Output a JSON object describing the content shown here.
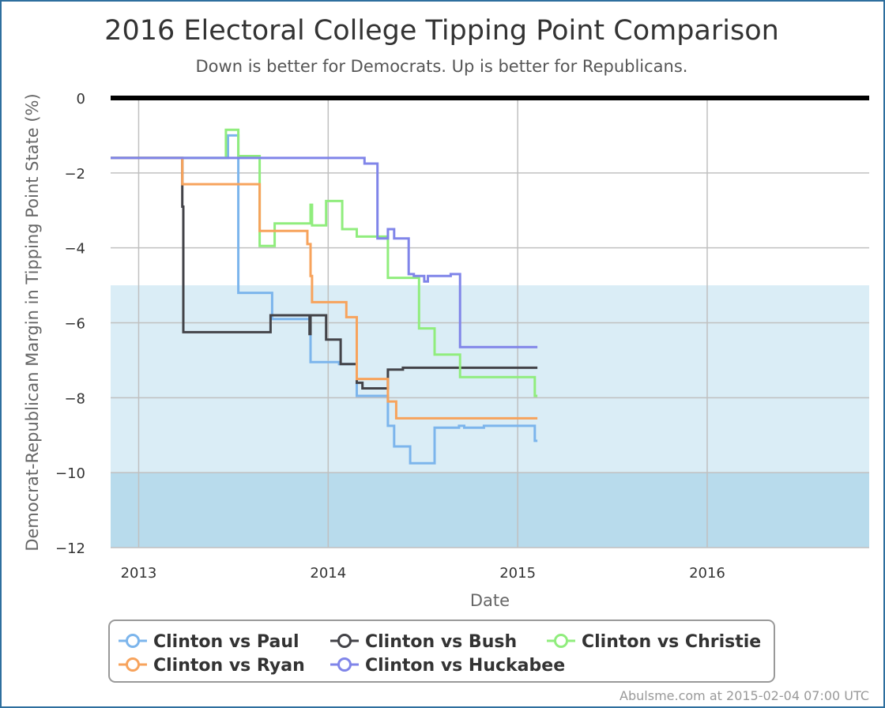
{
  "chart_data": {
    "type": "line",
    "title": "2016 Electoral College Tipping Point Comparison",
    "subtitle": "Down is better for Democrats. Up is better for Republicans.",
    "xlabel": "Date",
    "ylabel": "Democrat-Republican Margin in Tipping Point State (%)",
    "xlim": [
      "2012-11-08",
      "2016-11-08"
    ],
    "ylim": [
      -12,
      0
    ],
    "x_ticks": [
      {
        "date": "2013-01-01",
        "label": "2013"
      },
      {
        "date": "2014-01-01",
        "label": "2014"
      },
      {
        "date": "2015-01-01",
        "label": "2015"
      },
      {
        "date": "2016-01-01",
        "label": "2016"
      }
    ],
    "y_ticks": [
      0,
      -2,
      -4,
      -6,
      -8,
      -10,
      -12
    ],
    "bands": [
      {
        "from": -12,
        "to": -10,
        "color": "#b8dbec"
      },
      {
        "from": -10,
        "to": -5,
        "color": "#daedf6"
      }
    ],
    "zero_line_color": "#000000",
    "grid": true,
    "legend_position": "bottom",
    "series": [
      {
        "name": "Clinton vs Paul",
        "color": "#7cb5ec",
        "points": [
          [
            "2012-11-08",
            -1.6
          ],
          [
            "2013-06-22",
            -1.6
          ],
          [
            "2013-06-22",
            -1.0
          ],
          [
            "2013-07-12",
            -1.0
          ],
          [
            "2013-07-12",
            -5.2
          ],
          [
            "2013-09-15",
            -5.2
          ],
          [
            "2013-09-15",
            -5.9
          ],
          [
            "2013-11-28",
            -5.9
          ],
          [
            "2013-11-28",
            -7.05
          ],
          [
            "2014-01-22",
            -7.05
          ],
          [
            "2014-01-22",
            -7.1
          ],
          [
            "2014-02-25",
            -7.1
          ],
          [
            "2014-02-25",
            -7.95
          ],
          [
            "2014-04-26",
            -7.95
          ],
          [
            "2014-04-26",
            -8.75
          ],
          [
            "2014-05-08",
            -8.75
          ],
          [
            "2014-05-08",
            -9.3
          ],
          [
            "2014-06-08",
            -9.3
          ],
          [
            "2014-06-08",
            -9.75
          ],
          [
            "2014-07-25",
            -9.75
          ],
          [
            "2014-07-25",
            -8.8
          ],
          [
            "2014-09-10",
            -8.8
          ],
          [
            "2014-09-10",
            -8.75
          ],
          [
            "2014-09-20",
            -8.75
          ],
          [
            "2014-09-20",
            -8.8
          ],
          [
            "2014-10-28",
            -8.8
          ],
          [
            "2014-10-28",
            -8.75
          ],
          [
            "2015-02-03",
            -8.75
          ],
          [
            "2015-02-03",
            -9.15
          ],
          [
            "2015-02-08",
            -9.15
          ]
        ]
      },
      {
        "name": "Clinton vs Bush",
        "color": "#434348",
        "points": [
          [
            "2012-11-08",
            -1.6
          ],
          [
            "2013-03-26",
            -1.6
          ],
          [
            "2013-03-26",
            -2.9
          ],
          [
            "2013-03-28",
            -2.9
          ],
          [
            "2013-03-28",
            -6.25
          ],
          [
            "2013-09-12",
            -6.25
          ],
          [
            "2013-09-12",
            -5.8
          ],
          [
            "2013-11-26",
            -5.8
          ],
          [
            "2013-11-26",
            -6.3
          ],
          [
            "2013-11-28",
            -6.3
          ],
          [
            "2013-11-28",
            -5.8
          ],
          [
            "2013-12-28",
            -5.8
          ],
          [
            "2013-12-28",
            -6.45
          ],
          [
            "2014-01-25",
            -6.45
          ],
          [
            "2014-01-25",
            -7.1
          ],
          [
            "2014-02-25",
            -7.1
          ],
          [
            "2014-02-25",
            -7.6
          ],
          [
            "2014-03-08",
            -7.6
          ],
          [
            "2014-03-08",
            -7.75
          ],
          [
            "2014-04-26",
            -7.75
          ],
          [
            "2014-04-26",
            -7.25
          ],
          [
            "2014-05-25",
            -7.25
          ],
          [
            "2014-05-25",
            -7.2
          ],
          [
            "2015-02-08",
            -7.2
          ]
        ]
      },
      {
        "name": "Clinton vs Christie",
        "color": "#90ed7d",
        "points": [
          [
            "2012-11-08",
            -1.6
          ],
          [
            "2013-06-18",
            -1.6
          ],
          [
            "2013-06-18",
            -0.85
          ],
          [
            "2013-07-12",
            -0.85
          ],
          [
            "2013-07-12",
            -1.55
          ],
          [
            "2013-08-22",
            -1.55
          ],
          [
            "2013-08-22",
            -3.95
          ],
          [
            "2013-09-20",
            -3.95
          ],
          [
            "2013-09-20",
            -3.35
          ],
          [
            "2013-11-28",
            -3.35
          ],
          [
            "2013-11-28",
            -2.85
          ],
          [
            "2013-12-01",
            -2.85
          ],
          [
            "2013-12-01",
            -3.4
          ],
          [
            "2013-12-28",
            -3.4
          ],
          [
            "2013-12-28",
            -2.75
          ],
          [
            "2014-01-28",
            -2.75
          ],
          [
            "2014-01-28",
            -3.5
          ],
          [
            "2014-02-25",
            -3.5
          ],
          [
            "2014-02-25",
            -3.7
          ],
          [
            "2014-04-26",
            -3.7
          ],
          [
            "2014-04-26",
            -4.8
          ],
          [
            "2014-06-25",
            -4.8
          ],
          [
            "2014-06-25",
            -6.15
          ],
          [
            "2014-07-25",
            -6.15
          ],
          [
            "2014-07-25",
            -6.85
          ],
          [
            "2014-09-12",
            -6.85
          ],
          [
            "2014-09-12",
            -7.45
          ],
          [
            "2015-02-03",
            -7.45
          ],
          [
            "2015-02-03",
            -7.95
          ],
          [
            "2015-02-08",
            -7.95
          ]
        ]
      },
      {
        "name": "Clinton vs Ryan",
        "color": "#f7a35c",
        "points": [
          [
            "2012-11-08",
            -1.6
          ],
          [
            "2013-03-26",
            -1.6
          ],
          [
            "2013-03-26",
            -2.3
          ],
          [
            "2013-08-22",
            -2.3
          ],
          [
            "2013-08-22",
            -3.55
          ],
          [
            "2013-11-22",
            -3.55
          ],
          [
            "2013-11-22",
            -3.9
          ],
          [
            "2013-11-28",
            -3.9
          ],
          [
            "2013-11-28",
            -4.75
          ],
          [
            "2013-12-01",
            -4.75
          ],
          [
            "2013-12-01",
            -5.45
          ],
          [
            "2014-02-05",
            -5.45
          ],
          [
            "2014-02-05",
            -5.85
          ],
          [
            "2014-02-25",
            -5.85
          ],
          [
            "2014-02-25",
            -7.5
          ],
          [
            "2014-04-26",
            -7.5
          ],
          [
            "2014-04-26",
            -8.1
          ],
          [
            "2014-05-12",
            -8.1
          ],
          [
            "2014-05-12",
            -8.55
          ],
          [
            "2015-02-08",
            -8.55
          ]
        ]
      },
      {
        "name": "Clinton vs Huckabee",
        "color": "#8085e9",
        "points": [
          [
            "2012-11-08",
            -1.6
          ],
          [
            "2014-03-12",
            -1.6
          ],
          [
            "2014-03-12",
            -1.75
          ],
          [
            "2014-04-06",
            -1.75
          ],
          [
            "2014-04-06",
            -3.75
          ],
          [
            "2014-04-26",
            -3.75
          ],
          [
            "2014-04-26",
            -3.5
          ],
          [
            "2014-05-08",
            -3.5
          ],
          [
            "2014-05-08",
            -3.75
          ],
          [
            "2014-06-05",
            -3.75
          ],
          [
            "2014-06-05",
            -4.7
          ],
          [
            "2014-06-15",
            -4.7
          ],
          [
            "2014-06-15",
            -4.75
          ],
          [
            "2014-07-05",
            -4.75
          ],
          [
            "2014-07-05",
            -4.9
          ],
          [
            "2014-07-12",
            -4.9
          ],
          [
            "2014-07-12",
            -4.75
          ],
          [
            "2014-08-25",
            -4.75
          ],
          [
            "2014-08-25",
            -4.7
          ],
          [
            "2014-09-12",
            -4.7
          ],
          [
            "2014-09-12",
            -6.65
          ],
          [
            "2015-02-08",
            -6.65
          ]
        ]
      }
    ],
    "legend_rows": [
      [
        "Clinton vs Paul",
        "Clinton vs Bush",
        "Clinton vs Christie"
      ],
      [
        "Clinton vs Ryan",
        "Clinton vs Huckabee"
      ]
    ]
  },
  "credit": "Abulsme.com at 2015-02-04 07:00 UTC"
}
